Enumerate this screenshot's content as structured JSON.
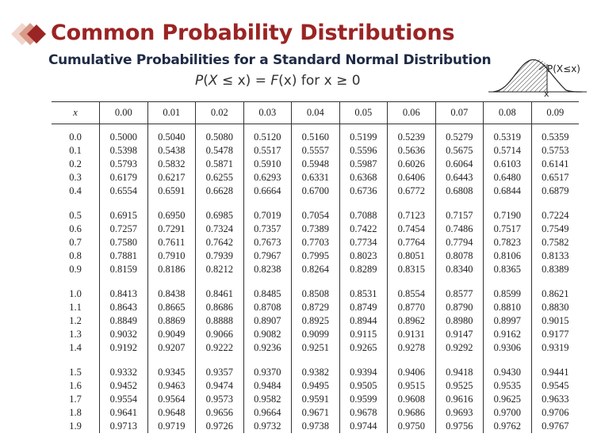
{
  "title": "Common Probability Distributions",
  "subtitle": "Cumulative Probabilities for a Standard Normal Distribution",
  "formula": {
    "lhs_italic": "P",
    "lhs_open": "(",
    "lhs_var": "X",
    "lhs_rest": " ≤ x) = ",
    "func": "F",
    "rhs": "(x) for x ≥ 0"
  },
  "diagram": {
    "label": "P(X≤x)",
    "axis_mark": "x"
  },
  "table": {
    "header_x": "x",
    "columns": [
      "0.00",
      "0.01",
      "0.02",
      "0.03",
      "0.04",
      "0.05",
      "0.06",
      "0.07",
      "0.08",
      "0.09"
    ],
    "groups": [
      [
        {
          "x": "0.0",
          "v": [
            "0.5000",
            "0.5040",
            "0.5080",
            "0.5120",
            "0.5160",
            "0.5199",
            "0.5239",
            "0.5279",
            "0.5319",
            "0.5359"
          ]
        },
        {
          "x": "0.1",
          "v": [
            "0.5398",
            "0.5438",
            "0.5478",
            "0.5517",
            "0.5557",
            "0.5596",
            "0.5636",
            "0.5675",
            "0.5714",
            "0.5753"
          ]
        },
        {
          "x": "0.2",
          "v": [
            "0.5793",
            "0.5832",
            "0.5871",
            "0.5910",
            "0.5948",
            "0.5987",
            "0.6026",
            "0.6064",
            "0.6103",
            "0.6141"
          ]
        },
        {
          "x": "0.3",
          "v": [
            "0.6179",
            "0.6217",
            "0.6255",
            "0.6293",
            "0.6331",
            "0.6368",
            "0.6406",
            "0.6443",
            "0.6480",
            "0.6517"
          ]
        },
        {
          "x": "0.4",
          "v": [
            "0.6554",
            "0.6591",
            "0.6628",
            "0.6664",
            "0.6700",
            "0.6736",
            "0.6772",
            "0.6808",
            "0.6844",
            "0.6879"
          ]
        }
      ],
      [
        {
          "x": "0.5",
          "v": [
            "0.6915",
            "0.6950",
            "0.6985",
            "0.7019",
            "0.7054",
            "0.7088",
            "0.7123",
            "0.7157",
            "0.7190",
            "0.7224"
          ]
        },
        {
          "x": "0.6",
          "v": [
            "0.7257",
            "0.7291",
            "0.7324",
            "0.7357",
            "0.7389",
            "0.7422",
            "0.7454",
            "0.7486",
            "0.7517",
            "0.7549"
          ]
        },
        {
          "x": "0.7",
          "v": [
            "0.7580",
            "0.7611",
            "0.7642",
            "0.7673",
            "0.7703",
            "0.7734",
            "0.7764",
            "0.7794",
            "0.7823",
            "0.7582"
          ]
        },
        {
          "x": "0.8",
          "v": [
            "0.7881",
            "0.7910",
            "0.7939",
            "0.7967",
            "0.7995",
            "0.8023",
            "0.8051",
            "0.8078",
            "0.8106",
            "0.8133"
          ]
        },
        {
          "x": "0.9",
          "v": [
            "0.8159",
            "0.8186",
            "0.8212",
            "0.8238",
            "0.8264",
            "0.8289",
            "0.8315",
            "0.8340",
            "0.8365",
            "0.8389"
          ]
        }
      ],
      [
        {
          "x": "1.0",
          "v": [
            "0.8413",
            "0.8438",
            "0.8461",
            "0.8485",
            "0.8508",
            "0.8531",
            "0.8554",
            "0.8577",
            "0.8599",
            "0.8621"
          ]
        },
        {
          "x": "1.1",
          "v": [
            "0.8643",
            "0.8665",
            "0.8686",
            "0.8708",
            "0.8729",
            "0.8749",
            "0.8770",
            "0.8790",
            "0.8810",
            "0.8830"
          ]
        },
        {
          "x": "1.2",
          "v": [
            "0.8849",
            "0.8869",
            "0.8888",
            "0.8907",
            "0.8925",
            "0.8944",
            "0.8962",
            "0.8980",
            "0.8997",
            "0.9015"
          ]
        },
        {
          "x": "1.3",
          "v": [
            "0.9032",
            "0.9049",
            "0.9066",
            "0.9082",
            "0.9099",
            "0.9115",
            "0.9131",
            "0.9147",
            "0.9162",
            "0.9177"
          ]
        },
        {
          "x": "1.4",
          "v": [
            "0.9192",
            "0.9207",
            "0.9222",
            "0.9236",
            "0.9251",
            "0.9265",
            "0.9278",
            "0.9292",
            "0.9306",
            "0.9319"
          ]
        }
      ],
      [
        {
          "x": "1.5",
          "v": [
            "0.9332",
            "0.9345",
            "0.9357",
            "0.9370",
            "0.9382",
            "0.9394",
            "0.9406",
            "0.9418",
            "0.9430",
            "0.9441"
          ]
        },
        {
          "x": "1.6",
          "v": [
            "0.9452",
            "0.9463",
            "0.9474",
            "0.9484",
            "0.9495",
            "0.9505",
            "0.9515",
            "0.9525",
            "0.9535",
            "0.9545"
          ]
        },
        {
          "x": "1.7",
          "v": [
            "0.9554",
            "0.9564",
            "0.9573",
            "0.9582",
            "0.9591",
            "0.9599",
            "0.9608",
            "0.9616",
            "0.9625",
            "0.9633"
          ]
        },
        {
          "x": "1.8",
          "v": [
            "0.9641",
            "0.9648",
            "0.9656",
            "0.9664",
            "0.9671",
            "0.9678",
            "0.9686",
            "0.9693",
            "0.9700",
            "0.9706"
          ]
        },
        {
          "x": "1.9",
          "v": [
            "0.9713",
            "0.9719",
            "0.9726",
            "0.9732",
            "0.9738",
            "0.9744",
            "0.9750",
            "0.9756",
            "0.9762",
            "0.9767"
          ]
        }
      ]
    ]
  },
  "colors": {
    "title": "#9b2424",
    "subtitle": "#1f2a44",
    "logo_dark": "#9b2424",
    "logo_light": "#e8c2b6"
  }
}
